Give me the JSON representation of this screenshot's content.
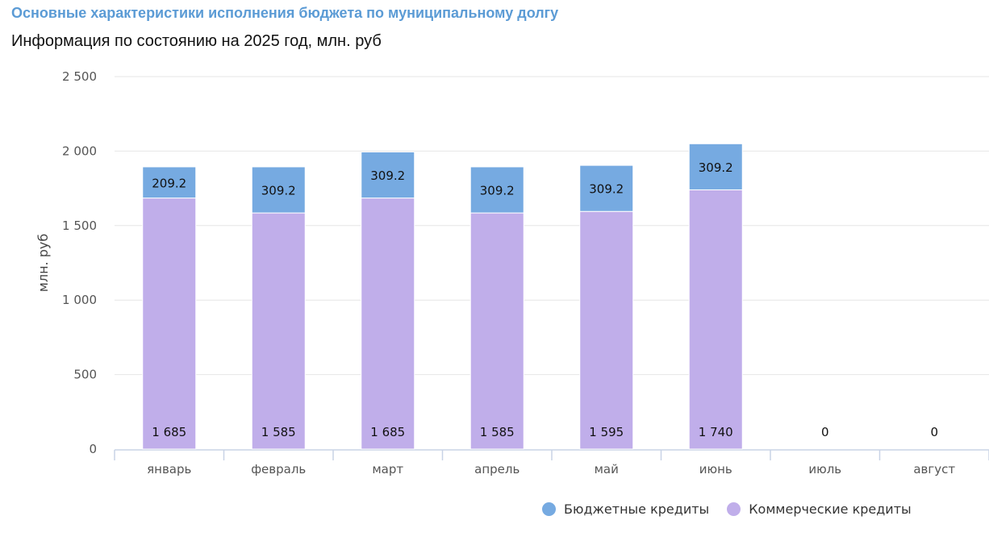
{
  "page": {
    "title": "Основные характеристики исполнения бюджета по муниципальному долгу",
    "subtitle": "Информация по состоянию на 2025 год, млн. руб"
  },
  "chart_data": {
    "type": "bar",
    "stacked": true,
    "categories": [
      "январь",
      "февраль",
      "март",
      "апрель",
      "май",
      "июнь",
      "июль",
      "август"
    ],
    "series": [
      {
        "name": "Коммерческие кредиты",
        "color": "#c0aeea",
        "values": [
          1685,
          1585,
          1685,
          1585,
          1595,
          1740,
          0,
          0
        ]
      },
      {
        "name": "Бюджетные кредиты",
        "color": "#76aae1",
        "values": [
          209.2,
          309.2,
          309.2,
          309.2,
          309.2,
          309.2,
          0,
          0
        ]
      }
    ],
    "value_labels": {
      "commercial": [
        "1 685",
        "1 585",
        "1 685",
        "1 585",
        "1 595",
        "1 740",
        "0",
        "0"
      ],
      "budget": [
        "209.2",
        "309.2",
        "309.2",
        "309.2",
        "309.2",
        "309.2",
        "",
        ""
      ]
    },
    "ylabel": "млн. руб",
    "xlabel": "",
    "ylim": [
      0,
      2500
    ],
    "yticks": [
      0,
      500,
      1000,
      1500,
      2000,
      2500
    ],
    "ytick_labels": [
      "0",
      "500",
      "1 000",
      "1 500",
      "2 000",
      "2 500"
    ],
    "grid": true,
    "legend_position": "bottom-right"
  }
}
